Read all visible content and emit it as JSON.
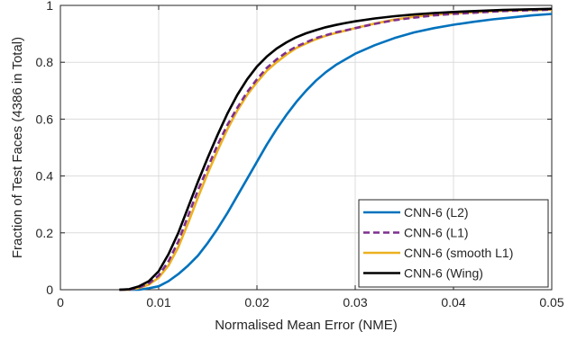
{
  "chart_data": {
    "type": "line",
    "title": "",
    "xlabel": "Normalised Mean Error (NME)",
    "ylabel": "Fraction of Test Faces (4386 in Total)",
    "xlim": [
      0,
      0.05
    ],
    "ylim": [
      0,
      1
    ],
    "x_ticks": [
      0,
      0.01,
      0.02,
      0.03,
      0.04,
      0.05
    ],
    "x_tick_labels": [
      "0",
      "0.01",
      "0.02",
      "0.03",
      "0.04",
      "0.05"
    ],
    "y_ticks": [
      0,
      0.2,
      0.4,
      0.6,
      0.8,
      1
    ],
    "y_tick_labels": [
      "0",
      "0.2",
      "0.4",
      "0.6",
      "0.8",
      "1"
    ],
    "grid": true,
    "legend_position": "bottom-right",
    "series": [
      {
        "name": "CNN-6 (L2)",
        "color": "#0072BD",
        "dash": "solid",
        "x": [
          0.006,
          0.008,
          0.009,
          0.01,
          0.011,
          0.012,
          0.013,
          0.014,
          0.015,
          0.016,
          0.017,
          0.018,
          0.019,
          0.02,
          0.021,
          0.022,
          0.023,
          0.024,
          0.025,
          0.026,
          0.027,
          0.028,
          0.029,
          0.03,
          0.032,
          0.034,
          0.036,
          0.038,
          0.04,
          0.042,
          0.044,
          0.046,
          0.048,
          0.05
        ],
        "y": [
          0.0,
          0.0,
          0.005,
          0.012,
          0.03,
          0.055,
          0.085,
          0.12,
          0.165,
          0.215,
          0.27,
          0.33,
          0.39,
          0.45,
          0.51,
          0.565,
          0.615,
          0.66,
          0.7,
          0.735,
          0.765,
          0.79,
          0.81,
          0.83,
          0.86,
          0.885,
          0.905,
          0.92,
          0.932,
          0.942,
          0.951,
          0.958,
          0.965,
          0.97
        ]
      },
      {
        "name": "CNN-6 (L1)",
        "color": "#7E2F8E",
        "dash": "dashed",
        "x": [
          0.006,
          0.007,
          0.008,
          0.009,
          0.01,
          0.011,
          0.012,
          0.013,
          0.014,
          0.015,
          0.016,
          0.017,
          0.018,
          0.019,
          0.02,
          0.021,
          0.022,
          0.023,
          0.024,
          0.025,
          0.026,
          0.027,
          0.028,
          0.029,
          0.03,
          0.032,
          0.034,
          0.036,
          0.038,
          0.04,
          0.045,
          0.05
        ],
        "y": [
          0.0,
          0.0,
          0.008,
          0.022,
          0.05,
          0.1,
          0.17,
          0.26,
          0.35,
          0.43,
          0.51,
          0.58,
          0.64,
          0.695,
          0.74,
          0.78,
          0.81,
          0.835,
          0.855,
          0.87,
          0.885,
          0.895,
          0.905,
          0.912,
          0.92,
          0.935,
          0.948,
          0.957,
          0.965,
          0.97,
          0.98,
          0.985
        ]
      },
      {
        "name": "CNN-6 (smooth L1)",
        "color": "#EDB120",
        "dash": "solid",
        "x": [
          0.006,
          0.007,
          0.008,
          0.009,
          0.01,
          0.011,
          0.012,
          0.013,
          0.014,
          0.015,
          0.016,
          0.017,
          0.018,
          0.019,
          0.02,
          0.021,
          0.022,
          0.023,
          0.024,
          0.025,
          0.026,
          0.027,
          0.028,
          0.029,
          0.03,
          0.032,
          0.034,
          0.036,
          0.038,
          0.04,
          0.045,
          0.05
        ],
        "y": [
          0.0,
          0.0,
          0.006,
          0.018,
          0.042,
          0.085,
          0.15,
          0.235,
          0.325,
          0.41,
          0.49,
          0.565,
          0.63,
          0.685,
          0.73,
          0.77,
          0.8,
          0.827,
          0.85,
          0.866,
          0.881,
          0.893,
          0.903,
          0.911,
          0.92,
          0.936,
          0.95,
          0.96,
          0.967,
          0.972,
          0.981,
          0.985
        ]
      },
      {
        "name": "CNN-6 (Wing)",
        "color": "#000000",
        "dash": "solid",
        "x": [
          0.006,
          0.007,
          0.008,
          0.009,
          0.01,
          0.011,
          0.012,
          0.013,
          0.014,
          0.015,
          0.016,
          0.017,
          0.018,
          0.019,
          0.02,
          0.021,
          0.022,
          0.023,
          0.024,
          0.025,
          0.026,
          0.027,
          0.028,
          0.029,
          0.03,
          0.032,
          0.034,
          0.036,
          0.038,
          0.04,
          0.045,
          0.05
        ],
        "y": [
          0.0,
          0.002,
          0.012,
          0.03,
          0.065,
          0.125,
          0.2,
          0.29,
          0.38,
          0.465,
          0.545,
          0.62,
          0.685,
          0.74,
          0.785,
          0.82,
          0.848,
          0.87,
          0.888,
          0.902,
          0.913,
          0.923,
          0.931,
          0.938,
          0.944,
          0.954,
          0.962,
          0.968,
          0.973,
          0.977,
          0.984,
          0.988
        ]
      }
    ]
  }
}
